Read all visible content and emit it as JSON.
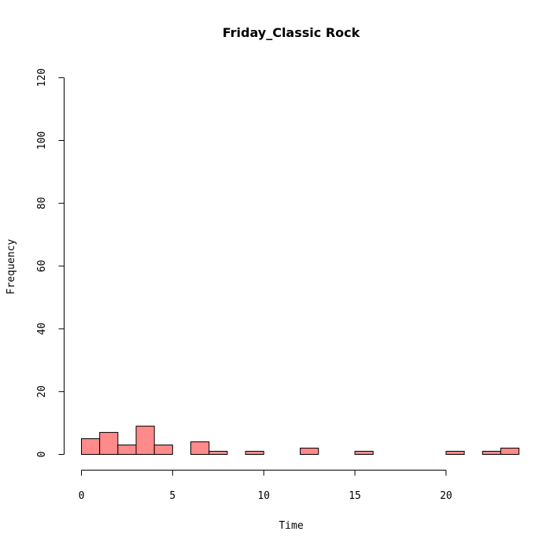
{
  "chart_data": {
    "type": "bar",
    "title": "Friday_Classic Rock",
    "xlabel": "Time",
    "ylabel": "Frequency",
    "bin_width": 1,
    "bins": [
      {
        "x0": 0,
        "x1": 1,
        "count": 5
      },
      {
        "x0": 1,
        "x1": 2,
        "count": 7
      },
      {
        "x0": 2,
        "x1": 3,
        "count": 3
      },
      {
        "x0": 3,
        "x1": 4,
        "count": 9
      },
      {
        "x0": 4,
        "x1": 5,
        "count": 3
      },
      {
        "x0": 6,
        "x1": 7,
        "count": 4
      },
      {
        "x0": 7,
        "x1": 8,
        "count": 1
      },
      {
        "x0": 9,
        "x1": 10,
        "count": 1
      },
      {
        "x0": 12,
        "x1": 13,
        "count": 2
      },
      {
        "x0": 15,
        "x1": 16,
        "count": 1
      },
      {
        "x0": 20,
        "x1": 21,
        "count": 1
      },
      {
        "x0": 22,
        "x1": 23,
        "count": 1
      },
      {
        "x0": 23,
        "x1": 24,
        "count": 2
      }
    ],
    "xlim": [
      0,
      24
    ],
    "ylim": [
      0,
      120
    ],
    "xticks": [
      0,
      5,
      10,
      15,
      20
    ],
    "yticks": [
      0,
      20,
      40,
      60,
      80,
      100,
      120
    ],
    "bar_color": "#FF8A8A",
    "grid": false
  }
}
